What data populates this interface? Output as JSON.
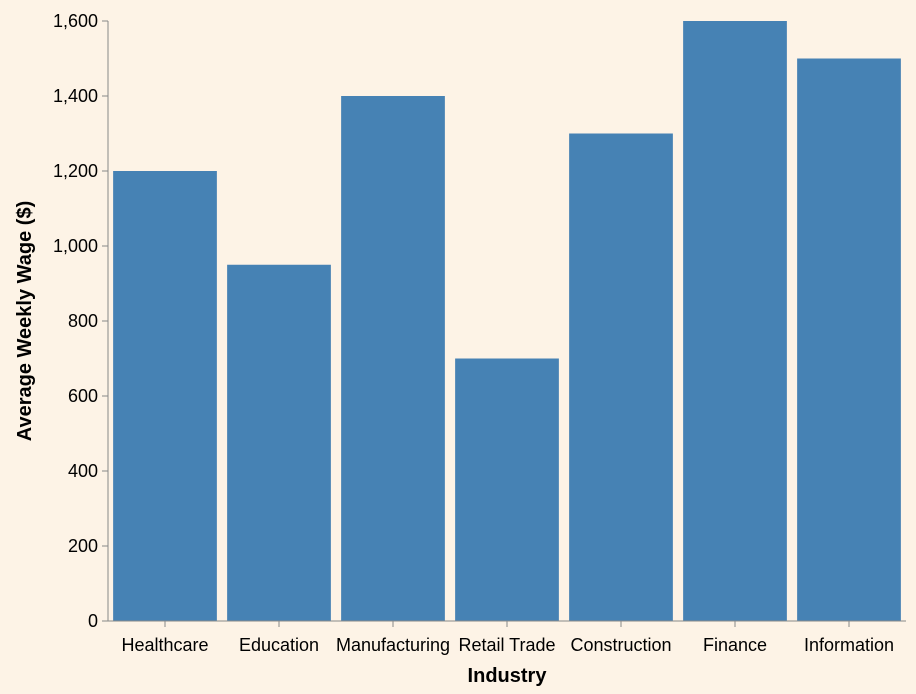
{
  "colors": {
    "background": "#fdf3e6",
    "bar": "#4682b4",
    "axis": "#888888"
  },
  "chart_data": {
    "type": "bar",
    "title": "",
    "xlabel": "Industry",
    "ylabel": "Average Weekly Wage ($)",
    "categories": [
      "Healthcare",
      "Education",
      "Manufacturing",
      "Retail Trade",
      "Construction",
      "Finance",
      "Information"
    ],
    "values": [
      1200,
      950,
      1400,
      700,
      1300,
      1600,
      1500
    ],
    "ylim": [
      0,
      1600
    ],
    "yticks": [
      0,
      200,
      400,
      600,
      800,
      1000,
      1200,
      1400,
      1600
    ],
    "ytick_labels": [
      "0",
      "200",
      "400",
      "600",
      "800",
      "1,000",
      "1,200",
      "1,400",
      "1,600"
    ],
    "grid": false,
    "legend": "none"
  }
}
